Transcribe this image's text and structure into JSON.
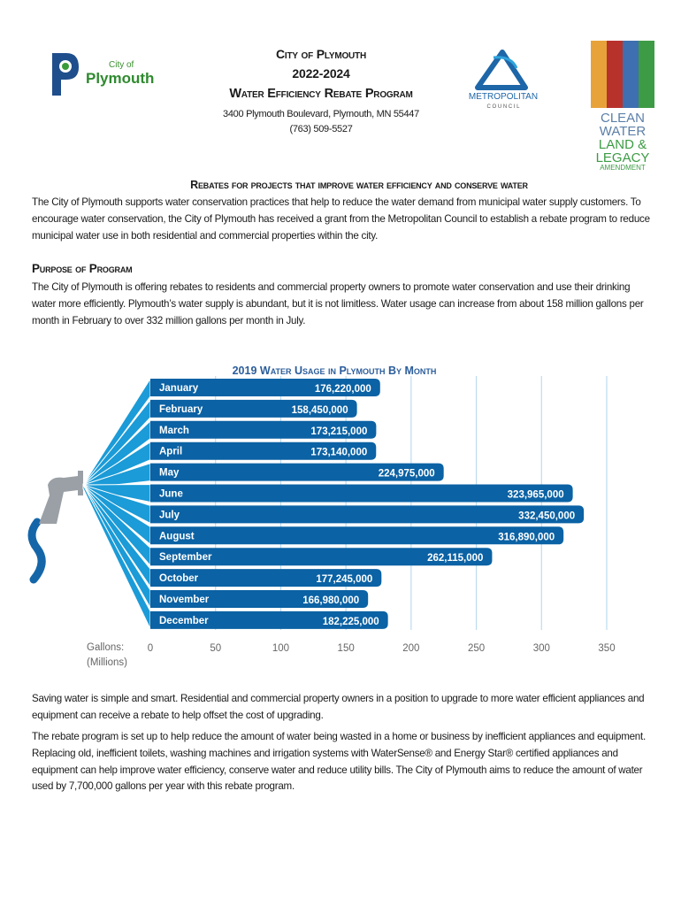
{
  "header": {
    "logo_plymouth": {
      "small": "City of",
      "large": "Plymouth"
    },
    "title1": "City of Plymouth",
    "title2": "2022-2024",
    "title3": "Water Efficiency Rebate Program",
    "address": "3400 Plymouth Boulevard, Plymouth, MN 55447",
    "phone": "(763) 509-5527",
    "logo_met": {
      "line1": "METROPOLITAN",
      "line2": "C O U N C I L"
    },
    "logo_clean": {
      "l1": "CLEAN",
      "l2": "WATER",
      "l3": "LAND &",
      "l4": "LEGACY",
      "l5": "AMENDMENT"
    }
  },
  "section1": {
    "heading": "Rebates for projects that improve water efficiency and conserve water",
    "body": "The City of Plymouth supports water conservation practices that help to reduce the water demand from municipal water supply customers. To encourage water conservation, the City of Plymouth has received a grant from the Metropolitan Council to establish a rebate program to reduce municipal water use in both residential and commercial properties within the city."
  },
  "section2": {
    "heading": "Purpose of Program",
    "body": "The City of Plymouth is offering rebates to residents and commercial property owners to promote water conservation and use their drinking water more efficiently. Plymouth’s water supply is abundant, but it is not limitless.  Water usage can increase from about 158 million gallons per month in February to over 332 million gallons per month in July."
  },
  "chart_data": {
    "type": "bar",
    "orientation": "horizontal",
    "title": "2019 Water Usage in Plymouth By Month",
    "xlabel": "Gallons: (Millions)",
    "xlabel_line1": "Gallons:",
    "xlabel_line2": "(Millions)",
    "xlim": [
      0,
      350
    ],
    "xticks": [
      0,
      50,
      100,
      150,
      200,
      250,
      300,
      350
    ],
    "grid": true,
    "categories": [
      "January",
      "February",
      "March",
      "April",
      "May",
      "June",
      "July",
      "August",
      "September",
      "October",
      "November",
      "December"
    ],
    "values": [
      176.22,
      158.45,
      173.215,
      173.14,
      224.975,
      323.965,
      332.45,
      316.89,
      262.115,
      177.245,
      166.98,
      182.225
    ],
    "data_labels": [
      "176,220,000",
      "158,450,000",
      "173,215,000",
      "173,140,000",
      "224,975,000",
      "323,965,000",
      "332,450,000",
      "316,890,000",
      "262,115,000",
      "177,245,000",
      "166,980,000",
      "182,225,000"
    ],
    "colors": {
      "bar": "#0b62a4",
      "fan": "#1b9bd7",
      "grid": "#bcdcef",
      "title": "#2b5d9b"
    }
  },
  "section3": {
    "body1": "Saving water is simple and smart. Residential and commercial property owners in a position to upgrade to more water efficient appliances and equipment can receive a rebate to help offset the cost of upgrading.",
    "body2": "The rebate program is set up to help reduce the amount of water being wasted in a home or business by inefficient appliances and equipment. Replacing old, inefficient toilets, washing machines and irrigation systems with WaterSense® and Energy Star® certified appliances and equipment can help improve water efficiency, conserve water and reduce utility bills. The City of Plymouth aims to reduce the amount of water used by 7,700,000 gallons per year with this rebate program."
  }
}
